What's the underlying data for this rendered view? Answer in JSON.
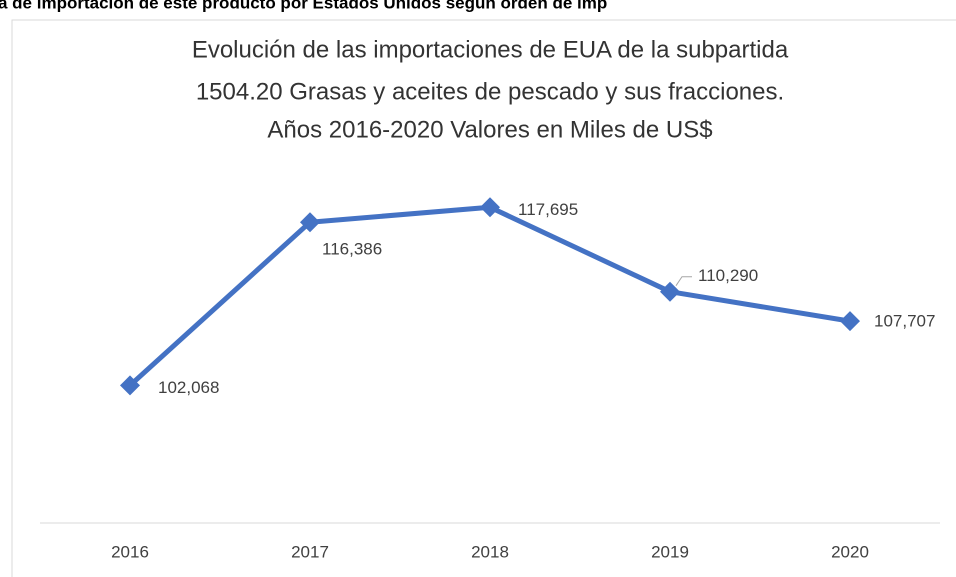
{
  "caption": "a de importación de este producto por Estados Unidos según orden de imp",
  "chart_data": {
    "type": "line",
    "title": [
      "Evolución de las importaciones de EUA de la subpartida",
      "1504.20 Grasas y aceites de pescado y sus fracciones.",
      "Años 2016-2020 Valores en Miles de US$"
    ],
    "categories": [
      "2016",
      "2017",
      "2018",
      "2019",
      "2020"
    ],
    "values": [
      102068,
      116386,
      117695,
      110290,
      107707
    ],
    "value_labels": [
      "102,068",
      "116,386",
      "117,695",
      "110,290",
      "107,707"
    ],
    "color": "#4472c4",
    "ylim": [
      90000,
      130000
    ]
  }
}
